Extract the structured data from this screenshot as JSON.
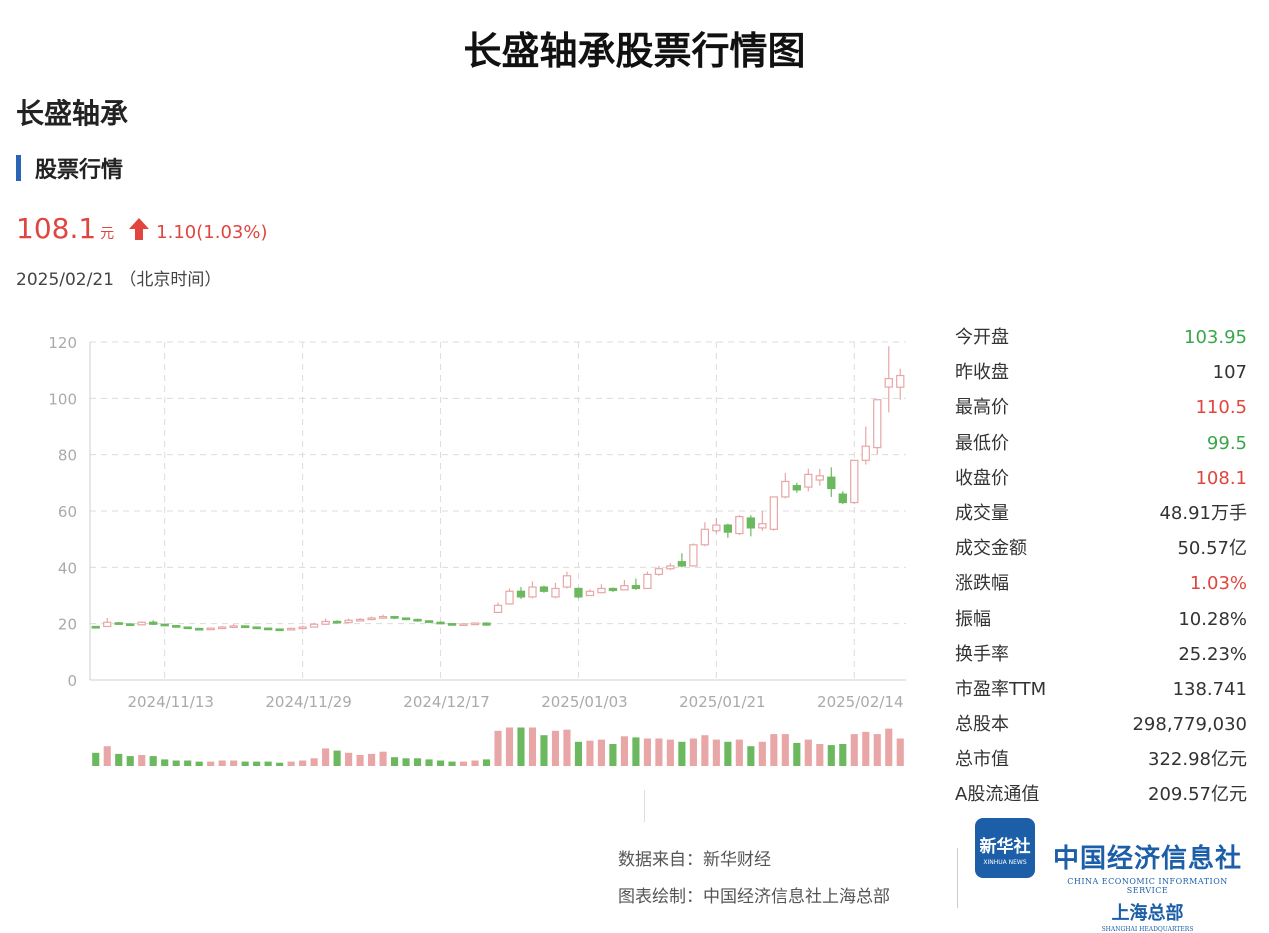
{
  "header": {
    "title": "长盛轴承股票行情图",
    "company": "长盛轴承",
    "section": "股票行情"
  },
  "quote": {
    "price": "108.1",
    "unit": "元",
    "change": "1.10(1.03%)",
    "date": "2025/02/21 （北京时间）"
  },
  "stats": [
    {
      "label": "今开盘",
      "value": "103.95",
      "color": "green"
    },
    {
      "label": "昨收盘",
      "value": "107",
      "color": "neutral"
    },
    {
      "label": "最高价",
      "value": "110.5",
      "color": "red"
    },
    {
      "label": "最低价",
      "value": "99.5",
      "color": "green"
    },
    {
      "label": "收盘价",
      "value": "108.1",
      "color": "red"
    },
    {
      "label": "成交量",
      "value": "48.91万手",
      "color": "neutral"
    },
    {
      "label": "成交金额",
      "value": "50.57亿",
      "color": "neutral"
    },
    {
      "label": "涨跌幅",
      "value": "1.03%",
      "color": "red"
    },
    {
      "label": "振幅",
      "value": "10.28%",
      "color": "neutral"
    },
    {
      "label": "换手率",
      "value": "25.23%",
      "color": "neutral"
    },
    {
      "label": "市盈率TTM",
      "value": "138.741",
      "color": "neutral"
    },
    {
      "label": "总股本",
      "value": "298,779,030",
      "color": "neutral"
    },
    {
      "label": "总市值",
      "value": "322.98亿元",
      "color": "neutral"
    },
    {
      "label": "A股流通值",
      "value": "209.57亿元",
      "color": "neutral"
    }
  ],
  "footer": {
    "source": "数据来自：新华财经",
    "drawn_by": "图表绘制：中国经济信息社上海总部",
    "logo_cn": "新华社",
    "logo_en": "XINHUA NEWS",
    "org_cn": "中国经济信息社",
    "org_en": "CHINA ECONOMIC INFORMATION SERVICE",
    "org_branch": "上海总部",
    "org_branch_en": "SHANGHAI HEADQUARTERS"
  },
  "colors": {
    "up": "#e8a6a6",
    "down": "#6cb85f",
    "accent_red": "#e0463f",
    "accent_green": "#3aa64a",
    "brand_blue": "#1c5fa8"
  },
  "chart_data": {
    "type": "candlestick",
    "ylim": [
      0,
      120
    ],
    "yticks": [
      0,
      20,
      40,
      60,
      80,
      100,
      120
    ],
    "x_labels": [
      {
        "label": "2024/11/13",
        "index": 6
      },
      {
        "label": "2024/11/29",
        "index": 18
      },
      {
        "label": "2024/12/17",
        "index": 30
      },
      {
        "label": "2025/01/03",
        "index": 42
      },
      {
        "label": "2025/01/21",
        "index": 54
      },
      {
        "label": "2025/02/14",
        "index": 66
      }
    ],
    "grid": true,
    "candles": [
      {
        "o": 19.0,
        "c": 18.9,
        "h": 19.2,
        "l": 18.5,
        "v": 12
      },
      {
        "o": 19.0,
        "c": 20.5,
        "h": 22.0,
        "l": 18.8,
        "v": 18
      },
      {
        "o": 20.3,
        "c": 19.9,
        "h": 20.6,
        "l": 19.6,
        "v": 11
      },
      {
        "o": 19.9,
        "c": 19.6,
        "h": 20.2,
        "l": 19.4,
        "v": 9
      },
      {
        "o": 19.6,
        "c": 20.5,
        "h": 20.8,
        "l": 19.4,
        "v": 10
      },
      {
        "o": 20.5,
        "c": 19.8,
        "h": 21.2,
        "l": 19.5,
        "v": 9
      },
      {
        "o": 19.8,
        "c": 19.3,
        "h": 20.0,
        "l": 19.0,
        "v": 6
      },
      {
        "o": 19.3,
        "c": 18.8,
        "h": 19.5,
        "l": 18.6,
        "v": 5
      },
      {
        "o": 18.8,
        "c": 18.3,
        "h": 19.0,
        "l": 18.1,
        "v": 5
      },
      {
        "o": 18.3,
        "c": 18.0,
        "h": 18.5,
        "l": 17.8,
        "v": 4
      },
      {
        "o": 18.0,
        "c": 18.4,
        "h": 18.6,
        "l": 17.8,
        "v": 4
      },
      {
        "o": 18.4,
        "c": 18.8,
        "h": 19.2,
        "l": 18.2,
        "v": 5
      },
      {
        "o": 18.8,
        "c": 19.2,
        "h": 19.8,
        "l": 18.6,
        "v": 5
      },
      {
        "o": 19.2,
        "c": 18.8,
        "h": 19.4,
        "l": 18.5,
        "v": 4
      },
      {
        "o": 18.8,
        "c": 18.4,
        "h": 19.0,
        "l": 18.2,
        "v": 4
      },
      {
        "o": 18.4,
        "c": 18.1,
        "h": 18.6,
        "l": 17.9,
        "v": 4
      },
      {
        "o": 18.1,
        "c": 17.9,
        "h": 18.3,
        "l": 17.7,
        "v": 3
      },
      {
        "o": 17.9,
        "c": 18.3,
        "h": 18.6,
        "l": 17.7,
        "v": 4
      },
      {
        "o": 18.3,
        "c": 18.8,
        "h": 19.3,
        "l": 18.1,
        "v": 5
      },
      {
        "o": 18.8,
        "c": 19.8,
        "h": 20.3,
        "l": 18.6,
        "v": 7
      },
      {
        "o": 19.8,
        "c": 20.8,
        "h": 21.8,
        "l": 19.6,
        "v": 16
      },
      {
        "o": 20.8,
        "c": 20.4,
        "h": 21.2,
        "l": 20.0,
        "v": 14
      },
      {
        "o": 20.4,
        "c": 21.2,
        "h": 21.8,
        "l": 20.2,
        "v": 12
      },
      {
        "o": 21.2,
        "c": 21.5,
        "h": 22.0,
        "l": 20.9,
        "v": 10
      },
      {
        "o": 21.5,
        "c": 22.0,
        "h": 22.5,
        "l": 21.2,
        "v": 11
      },
      {
        "o": 22.0,
        "c": 22.5,
        "h": 23.2,
        "l": 21.8,
        "v": 13
      },
      {
        "o": 22.5,
        "c": 22.0,
        "h": 22.8,
        "l": 21.6,
        "v": 8
      },
      {
        "o": 22.0,
        "c": 21.5,
        "h": 22.2,
        "l": 21.2,
        "v": 7
      },
      {
        "o": 21.5,
        "c": 21.0,
        "h": 21.8,
        "l": 20.7,
        "v": 7
      },
      {
        "o": 21.0,
        "c": 20.5,
        "h": 21.2,
        "l": 20.2,
        "v": 6
      },
      {
        "o": 20.5,
        "c": 20.0,
        "h": 20.8,
        "l": 19.8,
        "v": 5
      },
      {
        "o": 20.0,
        "c": 19.7,
        "h": 20.2,
        "l": 19.5,
        "v": 4
      },
      {
        "o": 19.7,
        "c": 19.9,
        "h": 20.2,
        "l": 19.5,
        "v": 4
      },
      {
        "o": 19.9,
        "c": 20.2,
        "h": 20.5,
        "l": 19.7,
        "v": 5
      },
      {
        "o": 20.2,
        "c": 19.5,
        "h": 20.5,
        "l": 19.3,
        "v": 6
      },
      {
        "o": 24.0,
        "c": 26.5,
        "h": 27.5,
        "l": 23.8,
        "v": 32
      },
      {
        "o": 27.0,
        "c": 31.5,
        "h": 32.5,
        "l": 26.8,
        "v": 35
      },
      {
        "o": 31.5,
        "c": 29.5,
        "h": 33.0,
        "l": 28.8,
        "v": 35
      },
      {
        "o": 29.5,
        "c": 33.0,
        "h": 35.0,
        "l": 29.0,
        "v": 35
      },
      {
        "o": 33.0,
        "c": 31.5,
        "h": 33.5,
        "l": 31.0,
        "v": 28
      },
      {
        "o": 29.5,
        "c": 32.5,
        "h": 34.5,
        "l": 29.0,
        "v": 32
      },
      {
        "o": 33.0,
        "c": 37.0,
        "h": 38.5,
        "l": 32.5,
        "v": 33
      },
      {
        "o": 32.5,
        "c": 29.5,
        "h": 32.8,
        "l": 29.0,
        "v": 22
      },
      {
        "o": 30.0,
        "c": 31.5,
        "h": 32.2,
        "l": 29.8,
        "v": 23
      },
      {
        "o": 31.0,
        "c": 32.5,
        "h": 34.0,
        "l": 30.8,
        "v": 24
      },
      {
        "o": 32.5,
        "c": 31.8,
        "h": 32.8,
        "l": 31.2,
        "v": 20
      },
      {
        "o": 32.0,
        "c": 33.5,
        "h": 35.5,
        "l": 31.8,
        "v": 27
      },
      {
        "o": 33.5,
        "c": 32.5,
        "h": 36.0,
        "l": 32.0,
        "v": 26
      },
      {
        "o": 32.5,
        "c": 37.5,
        "h": 38.5,
        "l": 32.3,
        "v": 25
      },
      {
        "o": 37.5,
        "c": 39.5,
        "h": 40.5,
        "l": 37.0,
        "v": 25
      },
      {
        "o": 39.5,
        "c": 40.5,
        "h": 41.5,
        "l": 39.0,
        "v": 24
      },
      {
        "o": 42.0,
        "c": 40.5,
        "h": 45.0,
        "l": 40.0,
        "v": 22
      },
      {
        "o": 40.5,
        "c": 48.0,
        "h": 48.5,
        "l": 40.2,
        "v": 25
      },
      {
        "o": 48.0,
        "c": 53.5,
        "h": 56.0,
        "l": 47.5,
        "v": 28
      },
      {
        "o": 53.0,
        "c": 55.0,
        "h": 57.5,
        "l": 52.0,
        "v": 24
      },
      {
        "o": 55.0,
        "c": 52.5,
        "h": 55.5,
        "l": 50.5,
        "v": 22
      },
      {
        "o": 52.0,
        "c": 58.0,
        "h": 58.5,
        "l": 51.5,
        "v": 24
      },
      {
        "o": 57.5,
        "c": 54.0,
        "h": 58.5,
        "l": 51.0,
        "v": 18
      },
      {
        "o": 54.0,
        "c": 55.5,
        "h": 60.0,
        "l": 53.0,
        "v": 22
      },
      {
        "o": 53.5,
        "c": 65.0,
        "h": 65.0,
        "l": 53.0,
        "v": 29
      },
      {
        "o": 65.0,
        "c": 70.5,
        "h": 73.5,
        "l": 64.5,
        "v": 29
      },
      {
        "o": 69.0,
        "c": 67.5,
        "h": 70.0,
        "l": 66.5,
        "v": 21
      },
      {
        "o": 68.5,
        "c": 73.0,
        "h": 75.0,
        "l": 67.0,
        "v": 24
      },
      {
        "o": 71.0,
        "c": 72.5,
        "h": 75.0,
        "l": 69.0,
        "v": 20
      },
      {
        "o": 72.0,
        "c": 68.0,
        "h": 75.5,
        "l": 65.0,
        "v": 19
      },
      {
        "o": 66.0,
        "c": 63.0,
        "h": 67.0,
        "l": 62.5,
        "v": 20
      },
      {
        "o": 63.0,
        "c": 78.0,
        "h": 78.0,
        "l": 62.5,
        "v": 29
      },
      {
        "o": 78.0,
        "c": 83.0,
        "h": 90.0,
        "l": 76.5,
        "v": 31
      },
      {
        "o": 82.5,
        "c": 99.5,
        "h": 99.5,
        "l": 80.0,
        "v": 29
      },
      {
        "o": 104.0,
        "c": 107.0,
        "h": 118.5,
        "l": 95.0,
        "v": 34
      },
      {
        "o": 103.95,
        "c": 108.1,
        "h": 110.5,
        "l": 99.5,
        "v": 25
      }
    ]
  }
}
